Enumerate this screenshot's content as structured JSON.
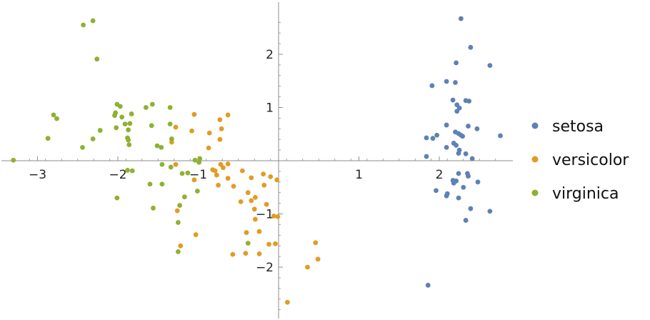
{
  "chart_data": {
    "type": "scatter",
    "title": "",
    "xlabel": "",
    "ylabel": "",
    "xlim": [
      -3.35,
      2.82
    ],
    "ylim": [
      -2.95,
      2.95
    ],
    "grid": false,
    "legend_position": "right",
    "x_ticks": [
      {
        "value": -3,
        "label": "−3"
      },
      {
        "value": -2,
        "label": "−2"
      },
      {
        "value": -1,
        "label": "−1"
      },
      {
        "value": 1,
        "label": "1"
      },
      {
        "value": 2,
        "label": "2"
      }
    ],
    "y_ticks": [
      {
        "value": -2,
        "label": "−2"
      },
      {
        "value": -1,
        "label": "−1"
      },
      {
        "value": 1,
        "label": "1"
      },
      {
        "value": 2,
        "label": "2"
      }
    ],
    "series": [
      {
        "name": "setosa",
        "color": "#5e81b5",
        "points": [
          [
            2.27,
            2.67
          ],
          [
            2.39,
            2.13
          ],
          [
            2.63,
            1.79
          ],
          [
            2.21,
            1.84
          ],
          [
            2.09,
            1.49
          ],
          [
            2.2,
            1.47
          ],
          [
            1.91,
            1.41
          ],
          [
            2.17,
            1.14
          ],
          [
            2.33,
            1.13
          ],
          [
            2.37,
            1.12
          ],
          [
            2.22,
            1.05
          ],
          [
            2.25,
            0.99
          ],
          [
            2.22,
            0.93
          ],
          [
            2.09,
            0.67
          ],
          [
            2.36,
            0.65
          ],
          [
            2.47,
            0.6
          ],
          [
            2.2,
            0.54
          ],
          [
            2.24,
            0.51
          ],
          [
            2.27,
            0.48
          ],
          [
            2.29,
            0.46
          ],
          [
            1.97,
            0.48
          ],
          [
            1.92,
            0.42
          ],
          [
            1.84,
            0.43
          ],
          [
            2.76,
            0.47
          ],
          [
            2.18,
            0.33
          ],
          [
            2.21,
            0.29
          ],
          [
            2.09,
            0.25
          ],
          [
            2.25,
            0.2
          ],
          [
            2.24,
            0.14
          ],
          [
            2.33,
            0.13
          ],
          [
            1.84,
            0.08
          ],
          [
            2.41,
            0.04
          ],
          [
            2.24,
            -0.24
          ],
          [
            2.35,
            -0.24
          ],
          [
            2.36,
            -0.29
          ],
          [
            2.48,
            -0.4
          ],
          [
            2.17,
            -0.37
          ],
          [
            2.21,
            -0.38
          ],
          [
            2.18,
            -0.42
          ],
          [
            2.3,
            -0.5
          ],
          [
            1.96,
            -0.56
          ],
          [
            2.1,
            -0.62
          ],
          [
            2.09,
            -0.66
          ],
          [
            2.24,
            -0.7
          ],
          [
            2.39,
            -0.9
          ],
          [
            2.63,
            -0.95
          ],
          [
            2.33,
            -1.12
          ],
          [
            1.86,
            -2.34
          ]
        ]
      },
      {
        "name": "versicolor",
        "color": "#e19c24",
        "points": [
          [
            -1.05,
            0.87
          ],
          [
            -0.63,
            0.86
          ],
          [
            -0.73,
            0.77
          ],
          [
            -1.28,
            0.63
          ],
          [
            -1.08,
            0.56
          ],
          [
            -0.71,
            0.6
          ],
          [
            -0.86,
            0.52
          ],
          [
            -1.33,
            0.35
          ],
          [
            -0.73,
            0.4
          ],
          [
            -0.87,
            0.24
          ],
          [
            -0.72,
            -0.07
          ],
          [
            -0.63,
            -0.06
          ],
          [
            -0.69,
            -0.13
          ],
          [
            -0.79,
            -0.19
          ],
          [
            -0.77,
            -0.27
          ],
          [
            -0.63,
            -0.33
          ],
          [
            -0.45,
            -0.19
          ],
          [
            -0.34,
            -0.32
          ],
          [
            -0.1,
            -0.3
          ],
          [
            -0.19,
            -0.25
          ],
          [
            -0.18,
            -0.46
          ],
          [
            -0.02,
            -0.36
          ],
          [
            -1.05,
            -0.36
          ],
          [
            -0.82,
            -0.17
          ],
          [
            -1.28,
            -0.07
          ],
          [
            -0.75,
            -0.46
          ],
          [
            -0.56,
            -0.48
          ],
          [
            -0.29,
            -0.69
          ],
          [
            -0.38,
            -0.6
          ],
          [
            -0.34,
            -0.75
          ],
          [
            -0.47,
            -0.77
          ],
          [
            -0.15,
            -0.82
          ],
          [
            -0.3,
            -0.91
          ],
          [
            -0.06,
            -1.04
          ],
          [
            -0.01,
            -1.05
          ],
          [
            -0.29,
            -1.1
          ],
          [
            -1.26,
            -0.94
          ],
          [
            -0.24,
            -1.33
          ],
          [
            -0.4,
            -1.35
          ],
          [
            -1.03,
            -1.39
          ],
          [
            -0.04,
            -1.56
          ],
          [
            -0.12,
            -1.57
          ],
          [
            -0.24,
            -1.75
          ],
          [
            -0.41,
            -1.74
          ],
          [
            -0.57,
            -1.76
          ],
          [
            -1.22,
            -1.6
          ],
          [
            0.46,
            -1.54
          ],
          [
            0.49,
            -1.85
          ],
          [
            0.36,
            -2.0
          ],
          [
            0.11,
            -2.66
          ]
        ]
      },
      {
        "name": "virginica",
        "color": "#8fb131",
        "points": [
          [
            -2.43,
            2.55
          ],
          [
            -2.31,
            2.63
          ],
          [
            -2.26,
            1.91
          ],
          [
            -2.01,
            1.06
          ],
          [
            -1.97,
            1.02
          ],
          [
            -1.57,
            1.06
          ],
          [
            -1.65,
            1.0
          ],
          [
            -1.35,
            1.0
          ],
          [
            -1.83,
            0.88
          ],
          [
            -2.03,
            0.9
          ],
          [
            -2.04,
            0.85
          ],
          [
            -1.95,
            0.82
          ],
          [
            -2.8,
            0.86
          ],
          [
            -2.76,
            0.79
          ],
          [
            -1.91,
            0.69
          ],
          [
            -1.85,
            0.7
          ],
          [
            -1.35,
            0.69
          ],
          [
            -1.58,
            0.66
          ],
          [
            -1.87,
            0.58
          ],
          [
            -2.02,
            0.62
          ],
          [
            -2.22,
            0.57
          ],
          [
            -2.87,
            0.42
          ],
          [
            -2.31,
            0.41
          ],
          [
            -1.88,
            0.43
          ],
          [
            -1.87,
            0.39
          ],
          [
            -1.33,
            0.41
          ],
          [
            -1.86,
            0.3
          ],
          [
            -1.51,
            0.28
          ],
          [
            -1.46,
            0.25
          ],
          [
            -2.44,
            0.25
          ],
          [
            -3.3,
            0.01
          ],
          [
            -0.98,
            0.04
          ],
          [
            -1.04,
            0.01
          ],
          [
            -0.99,
            -0.03
          ],
          [
            -1.45,
            -0.07
          ],
          [
            -1.34,
            -0.12
          ],
          [
            -1.88,
            -0.18
          ],
          [
            -1.82,
            -0.19
          ],
          [
            -1.13,
            -0.23
          ],
          [
            -1.2,
            -0.24
          ],
          [
            -1.6,
            -0.44
          ],
          [
            -1.45,
            -0.44
          ],
          [
            -1.01,
            -0.57
          ],
          [
            -1.17,
            -0.68
          ],
          [
            -2.01,
            -0.7
          ],
          [
            -1.23,
            -0.84
          ],
          [
            -1.56,
            -0.89
          ],
          [
            -1.25,
            -1.16
          ],
          [
            -0.38,
            -1.55
          ],
          [
            -1.25,
            -1.71
          ]
        ]
      }
    ]
  }
}
